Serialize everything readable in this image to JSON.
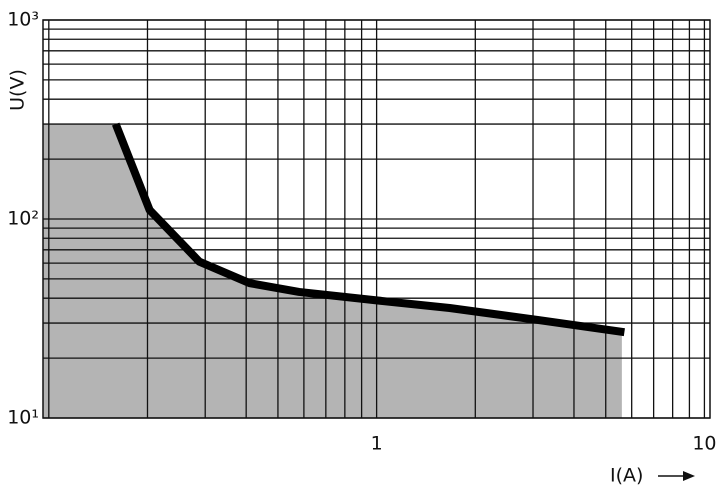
{
  "chart_data": {
    "type": "line",
    "xlabel": "I(A)",
    "ylabel": "U(V)",
    "log_x": true,
    "log_y": true,
    "grid": true,
    "xlim": [
      0.096,
      10.4
    ],
    "ylim": [
      10,
      1000
    ],
    "xticks": [
      1,
      10
    ],
    "yticks": [
      {
        "value": 10,
        "label": "10¹"
      },
      {
        "value": 100,
        "label": "10²"
      },
      {
        "value": 1000,
        "label": "10³"
      }
    ],
    "minor_xticks": [
      0.1,
      0.2,
      0.3,
      0.4,
      0.5,
      0.6,
      0.7,
      0.8,
      0.9,
      2,
      3,
      4,
      5,
      6,
      7,
      8,
      9
    ],
    "minor_yticks": [
      20,
      30,
      40,
      50,
      60,
      70,
      80,
      90,
      200,
      300,
      400,
      500,
      600,
      700,
      800,
      900
    ],
    "area": {
      "color": "#b4b4b4",
      "x": [
        0.096,
        0.16,
        0.203,
        0.288,
        0.41,
        0.58,
        1,
        1.67,
        3.14,
        5.6
      ],
      "values": [
        300,
        300,
        111,
        61,
        47.6,
        43,
        39,
        35.7,
        31,
        27
      ]
    },
    "series": [
      {
        "color": "#000000",
        "x": [
          0.16,
          0.203,
          0.288,
          0.41,
          0.58,
          1,
          1.67,
          3.14,
          5.7
        ],
        "values": [
          300,
          111,
          61,
          47.6,
          43,
          39,
          35.7,
          31,
          27
        ]
      }
    ]
  }
}
